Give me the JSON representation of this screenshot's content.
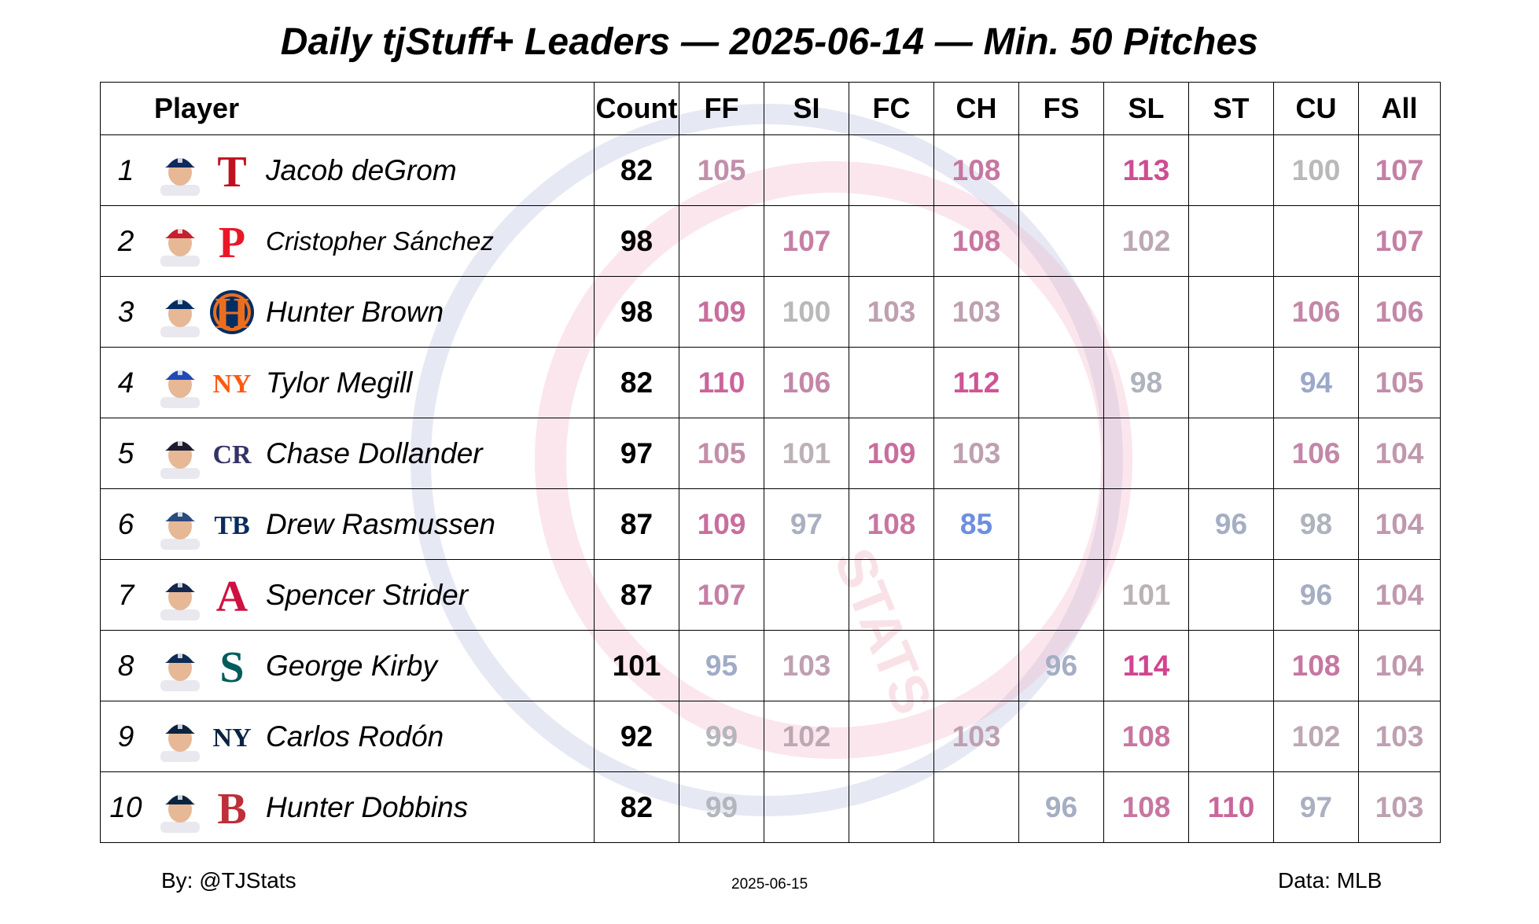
{
  "title": "Daily tjStuff+ Leaders — 2025-06-14 — Min. 50 Pitches",
  "footer": {
    "left": "By: @TJStats",
    "center": "2025-06-15",
    "right": "Data: MLB"
  },
  "watermark_text": "STATS",
  "columns": [
    "Player",
    "Count",
    "FF",
    "SI",
    "FC",
    "CH",
    "FS",
    "SL",
    "ST",
    "CU",
    "All"
  ],
  "chart_data": {
    "type": "table",
    "title": "Daily tjStuff+ Leaders — 2025-06-14 — Min. 50 Pitches",
    "pitch_types": [
      "FF",
      "SI",
      "FC",
      "CH",
      "FS",
      "SL",
      "ST",
      "CU",
      "All"
    ],
    "rows": [
      {
        "rank": "1",
        "player": "Jacob deGrom",
        "team": "Texas Rangers",
        "logo_glyph": "T",
        "logo_color": "#c0111f",
        "cap_color": "#0f2a5c",
        "count": "82",
        "values": [
          "105",
          "",
          "",
          "108",
          "",
          "113",
          "",
          "100",
          "107"
        ]
      },
      {
        "rank": "2",
        "player": "Cristopher Sánchez",
        "team": "Philadelphia Phillies",
        "logo_glyph": "P",
        "logo_color": "#e81828",
        "cap_color": "#c5202f",
        "count": "98",
        "values": [
          "",
          "107",
          "",
          "108",
          "",
          "102",
          "",
          "",
          "107"
        ]
      },
      {
        "rank": "3",
        "player": "Hunter Brown",
        "team": "Houston Astros",
        "logo_glyph": "H",
        "logo_color": "#eb6e1f",
        "cap_color": "#002d62",
        "count": "98",
        "values": [
          "109",
          "100",
          "103",
          "103",
          "",
          "",
          "",
          "106",
          "106"
        ]
      },
      {
        "rank": "4",
        "player": "Tylor Megill",
        "team": "New York Mets",
        "logo_glyph": "NY",
        "logo_color": "#ff5910",
        "cap_color": "#1f4bb6",
        "count": "82",
        "values": [
          "110",
          "106",
          "",
          "112",
          "",
          "98",
          "",
          "94",
          "105"
        ]
      },
      {
        "rank": "5",
        "player": "Chase Dollander",
        "team": "Colorado Rockies",
        "logo_glyph": "CR",
        "logo_color": "#333366",
        "cap_color": "#1c1c2e",
        "count": "97",
        "values": [
          "105",
          "101",
          "109",
          "103",
          "",
          "",
          "",
          "106",
          "104"
        ]
      },
      {
        "rank": "6",
        "player": "Drew Rasmussen",
        "team": "Tampa Bay Rays",
        "logo_glyph": "TB",
        "logo_color": "#092c5c",
        "cap_color": "#2a4a80",
        "count": "87",
        "values": [
          "109",
          "97",
          "108",
          "85",
          "",
          "",
          "96",
          "98",
          "104"
        ]
      },
      {
        "rank": "7",
        "player": "Spencer Strider",
        "team": "Atlanta Braves",
        "logo_glyph": "A",
        "logo_color": "#ce1141",
        "cap_color": "#13274f",
        "count": "87",
        "values": [
          "107",
          "",
          "",
          "",
          "",
          "101",
          "",
          "96",
          "104"
        ]
      },
      {
        "rank": "8",
        "player": "George Kirby",
        "team": "Seattle Mariners",
        "logo_glyph": "S",
        "logo_color": "#005c5c",
        "cap_color": "#0c2c56",
        "count": "101",
        "values": [
          "95",
          "103",
          "",
          "",
          "96",
          "114",
          "",
          "108",
          "104"
        ]
      },
      {
        "rank": "9",
        "player": "Carlos Rodón",
        "team": "New York Yankees",
        "logo_glyph": "NY",
        "logo_color": "#0c2340",
        "cap_color": "#0c2340",
        "count": "92",
        "values": [
          "99",
          "102",
          "",
          "103",
          "",
          "108",
          "",
          "102",
          "103"
        ]
      },
      {
        "rank": "10",
        "player": "Hunter Dobbins",
        "team": "Boston Red Sox",
        "logo_glyph": "B",
        "logo_color": "#bd3039",
        "cap_color": "#0c2340",
        "count": "82",
        "values": [
          "99",
          "",
          "",
          "",
          "96",
          "108",
          "110",
          "97",
          "103"
        ]
      }
    ],
    "color_scale": {
      "low": "#6d8ee0",
      "mid": "#b9b9b9",
      "high": "#d1448f"
    }
  }
}
